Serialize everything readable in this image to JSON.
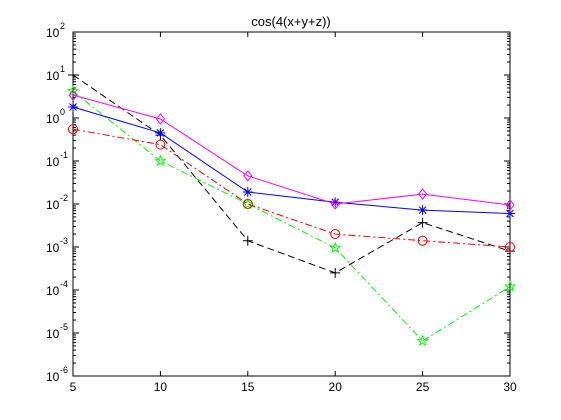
{
  "chart_data": {
    "type": "line",
    "title": "cos(4(x+y+z))",
    "xlabel": "",
    "ylabel": "",
    "x": [
      5,
      10,
      15,
      20,
      25,
      30
    ],
    "xlim": [
      5,
      30
    ],
    "ylim": [
      1e-06,
      100
    ],
    "yscale": "log",
    "xticks": [
      "5",
      "10",
      "15",
      "20",
      "25",
      "30"
    ],
    "yticks": [
      {
        "base": "10",
        "exp": "-6"
      },
      {
        "base": "10",
        "exp": "-5"
      },
      {
        "base": "10",
        "exp": "-4"
      },
      {
        "base": "10",
        "exp": "-3"
      },
      {
        "base": "10",
        "exp": "-2"
      },
      {
        "base": "10",
        "exp": "-1"
      },
      {
        "base": "10",
        "exp": "0"
      },
      {
        "base": "10",
        "exp": "1"
      },
      {
        "base": "10",
        "exp": "2"
      }
    ],
    "grid": false,
    "legend": "none",
    "series": [
      {
        "color": "#000000",
        "marker": "plus",
        "dash": "dashed",
        "values": [
          10,
          0.4,
          0.0014,
          0.00025,
          0.0037,
          0.0008
        ]
      },
      {
        "color": "#00ff00",
        "marker": "star5",
        "dash": "dashdot",
        "values": [
          4.2,
          0.1,
          0.01,
          0.00095,
          6.5e-06,
          0.00012
        ]
      },
      {
        "color": "#ff0000",
        "marker": "circle",
        "dash": "dashdot",
        "values": [
          0.55,
          0.24,
          0.01,
          0.002,
          0.0014,
          0.001
        ]
      },
      {
        "color": "#0000ff",
        "marker": "asterisk",
        "dash": "solid",
        "values": [
          1.8,
          0.45,
          0.019,
          0.011,
          0.0072,
          0.006
        ]
      },
      {
        "color": "#ff00ff",
        "marker": "diamond",
        "dash": "solid",
        "values": [
          3.4,
          0.95,
          0.045,
          0.01,
          0.017,
          0.0095
        ]
      }
    ]
  }
}
